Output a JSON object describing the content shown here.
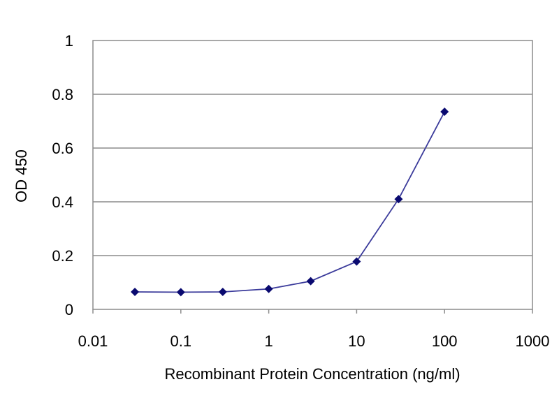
{
  "chart_data": {
    "type": "line",
    "title": "",
    "xlabel": "Recombinant Protein Concentration (ng/ml)",
    "ylabel": "OD 450",
    "xscale": "log",
    "xlim": [
      0.01,
      1000
    ],
    "ylim": [
      0,
      1
    ],
    "grid": "horizontal",
    "legend": "none",
    "x_ticks": [
      0.01,
      0.1,
      1,
      10,
      100,
      1000
    ],
    "x_tick_labels": [
      "0.01",
      "0.1",
      "1",
      "10",
      "100",
      "1000"
    ],
    "y_ticks": [
      0,
      0.2,
      0.4,
      0.6,
      0.8,
      1
    ],
    "y_tick_labels": [
      "0",
      "0.2",
      "0.4",
      "0.6",
      "0.8",
      "1"
    ],
    "series": [
      {
        "x": [
          0.03,
          0.1,
          0.3,
          1,
          3,
          10,
          30,
          100
        ],
        "y": [
          0.065,
          0.064,
          0.065,
          0.076,
          0.105,
          0.178,
          0.41,
          0.735
        ]
      }
    ],
    "colors": {
      "line": "#3b3b9b",
      "marker": "#0a0a70",
      "plot_background": "#ffffff",
      "gridline": "#8c8c8c",
      "frame": "#8c8c8c"
    }
  }
}
